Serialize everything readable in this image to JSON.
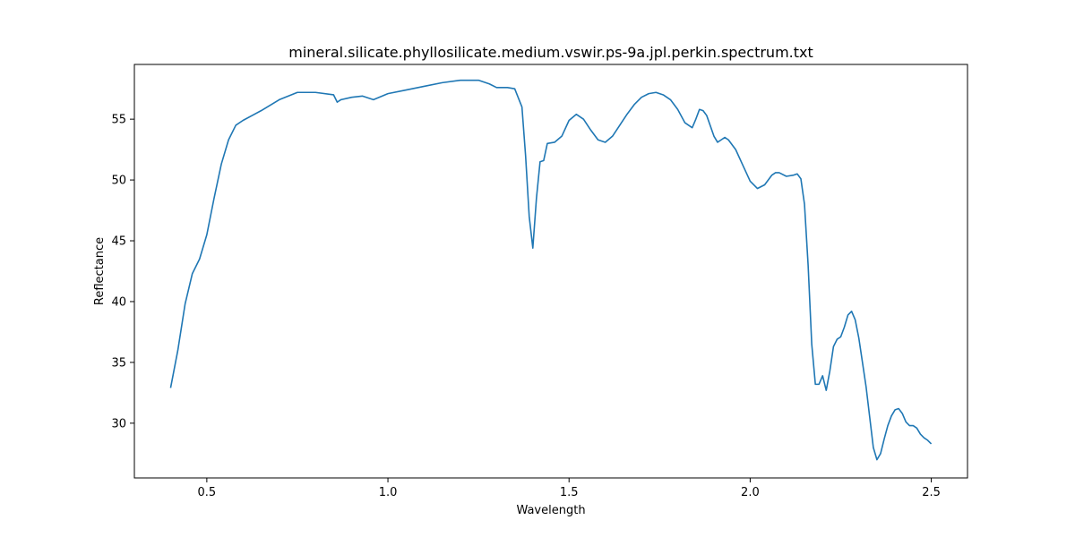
{
  "chart_data": {
    "type": "line",
    "title": "mineral.silicate.phyllosilicate.medium.vswir.ps-9a.jpl.perkin.spectrum.txt",
    "xlabel": "Wavelength",
    "ylabel": "Reflectance",
    "xlim": [
      0.3,
      2.6
    ],
    "ylim": [
      25.5,
      59.5
    ],
    "x_ticks": [
      0.5,
      1.0,
      1.5,
      2.0,
      2.5
    ],
    "x_tick_labels": [
      "0.5",
      "1.0",
      "1.5",
      "2.0",
      "2.5"
    ],
    "y_ticks": [
      30,
      35,
      40,
      45,
      50,
      55
    ],
    "y_tick_labels": [
      "30",
      "35",
      "40",
      "45",
      "50",
      "55"
    ],
    "grid": false,
    "line_color": "#1f77b4",
    "series": [
      {
        "x": [
          0.4,
          0.42,
          0.44,
          0.46,
          0.48,
          0.5,
          0.52,
          0.54,
          0.56,
          0.58,
          0.6,
          0.65,
          0.7,
          0.75,
          0.8,
          0.85,
          0.86,
          0.87,
          0.9,
          0.93,
          0.96,
          1.0,
          1.05,
          1.1,
          1.15,
          1.2,
          1.25,
          1.28,
          1.3,
          1.33,
          1.35,
          1.37,
          1.38,
          1.39,
          1.4,
          1.41,
          1.42,
          1.43,
          1.44,
          1.46,
          1.48,
          1.5,
          1.52,
          1.54,
          1.56,
          1.58,
          1.6,
          1.62,
          1.64,
          1.66,
          1.68,
          1.7,
          1.72,
          1.74,
          1.76,
          1.78,
          1.8,
          1.82,
          1.84,
          1.85,
          1.86,
          1.87,
          1.88,
          1.9,
          1.91,
          1.92,
          1.93,
          1.94,
          1.96,
          1.98,
          2.0,
          2.02,
          2.04,
          2.06,
          2.07,
          2.08,
          2.1,
          2.12,
          2.13,
          2.14,
          2.15,
          2.16,
          2.17,
          2.18,
          2.19,
          2.2,
          2.21,
          2.22,
          2.23,
          2.24,
          2.25,
          2.26,
          2.27,
          2.28,
          2.29,
          2.3,
          2.31,
          2.32,
          2.33,
          2.34,
          2.35,
          2.36,
          2.37,
          2.38,
          2.39,
          2.4,
          2.41,
          2.42,
          2.43,
          2.44,
          2.45,
          2.46,
          2.47,
          2.48,
          2.49,
          2.5
        ],
        "y": [
          32.9,
          36.0,
          39.8,
          42.3,
          43.5,
          45.5,
          48.5,
          51.3,
          53.3,
          54.5,
          54.9,
          55.7,
          56.6,
          57.2,
          57.2,
          57.0,
          56.4,
          56.6,
          56.8,
          56.9,
          56.6,
          57.1,
          57.4,
          57.7,
          58.0,
          58.2,
          58.2,
          57.9,
          57.6,
          57.6,
          57.5,
          56.0,
          52.0,
          47.0,
          44.4,
          48.5,
          51.5,
          51.6,
          53.0,
          53.1,
          53.6,
          54.9,
          55.4,
          55.0,
          54.1,
          53.3,
          53.1,
          53.6,
          54.5,
          55.4,
          56.2,
          56.8,
          57.1,
          57.2,
          57.0,
          56.6,
          55.8,
          54.7,
          54.3,
          55.0,
          55.8,
          55.7,
          55.3,
          53.6,
          53.1,
          53.3,
          53.5,
          53.3,
          52.5,
          51.2,
          49.9,
          49.3,
          49.6,
          50.4,
          50.6,
          50.6,
          50.3,
          50.4,
          50.5,
          50.1,
          48.0,
          43.0,
          36.5,
          33.2,
          33.2,
          33.9,
          32.7,
          34.3,
          36.3,
          36.9,
          37.1,
          37.9,
          38.9,
          39.2,
          38.5,
          37.0,
          35.0,
          33.0,
          30.5,
          28.0,
          27.0,
          27.5,
          28.7,
          29.8,
          30.6,
          31.1,
          31.2,
          30.8,
          30.1,
          29.8,
          29.8,
          29.6,
          29.1,
          28.8,
          28.6,
          28.3
        ]
      }
    ]
  }
}
